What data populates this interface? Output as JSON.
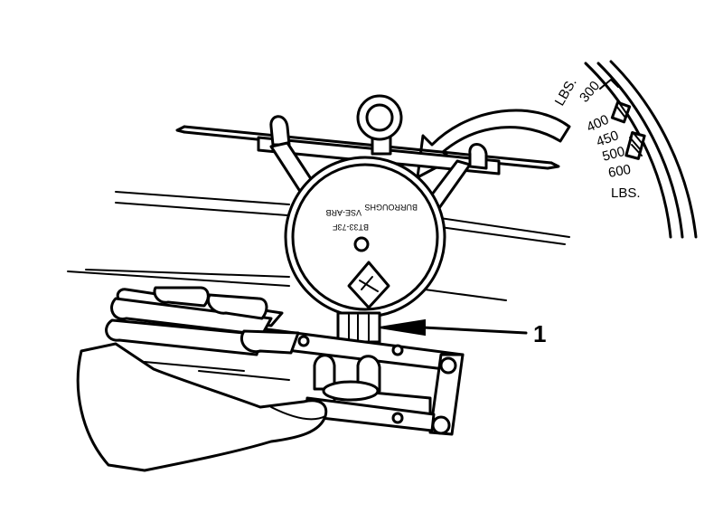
{
  "scale": {
    "unit_top": "LBS.",
    "unit_bottom": "LBS.",
    "ticks": [
      "300",
      "400",
      "450",
      "500",
      "600"
    ]
  },
  "dial": {
    "line1": "BT33-73F",
    "line2": "VSE-ARB",
    "line3": "BURROUGHS"
  },
  "callouts": {
    "item1": "1"
  }
}
